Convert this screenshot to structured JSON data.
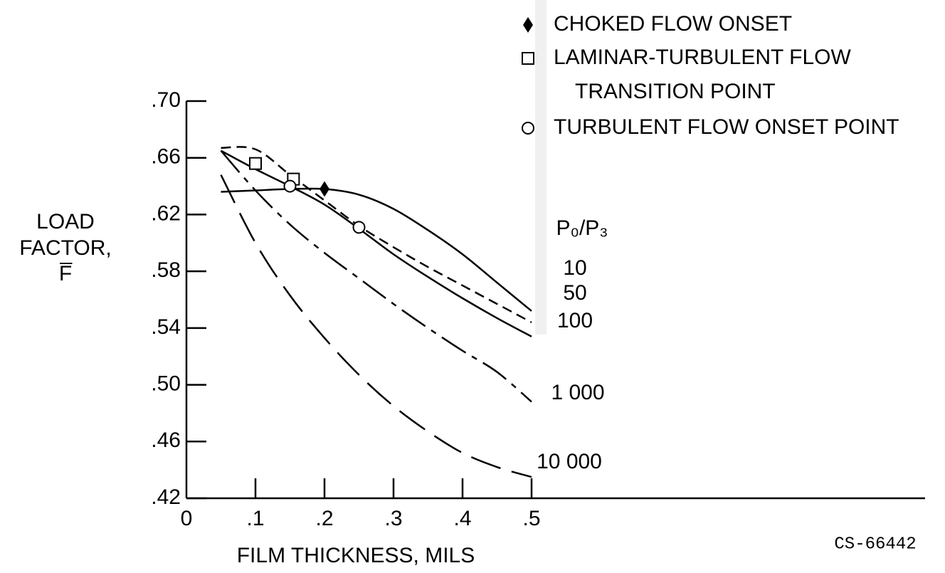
{
  "chart_data": {
    "type": "line",
    "xlabel": "FILM THICKNESS, MILS",
    "ylabel": [
      "LOAD",
      "FACTOR,",
      "F̅"
    ],
    "annotation": "CS-66442",
    "curve_label_title": "P₀/P₃",
    "xlim": [
      0,
      0.5
    ],
    "ylim": [
      0.42,
      0.7
    ],
    "xticks": [
      0,
      {
        "value": 0.1,
        "label": ".1"
      },
      {
        "value": 0.2,
        "label": ".2"
      },
      {
        "value": 0.3,
        "label": ".3"
      },
      {
        "value": 0.4,
        "label": ".4"
      },
      {
        "value": 0.5,
        "label": ".5"
      }
    ],
    "yticks": [
      {
        "value": 0.42,
        "label": ".42"
      },
      {
        "value": 0.46,
        "label": ".46"
      },
      {
        "value": 0.5,
        "label": ".50"
      },
      {
        "value": 0.54,
        "label": ".54"
      },
      {
        "value": 0.58,
        "label": ".58"
      },
      {
        "value": 0.62,
        "label": ".62"
      },
      {
        "value": 0.66,
        "label": ".66"
      },
      {
        "value": 0.7,
        "label": ".70"
      }
    ],
    "x": [
      0.05,
      0.1,
      0.15,
      0.2,
      0.25,
      0.3,
      0.35,
      0.4,
      0.45,
      0.5
    ],
    "series": [
      {
        "name": "10",
        "color": "#000000",
        "style": "solid",
        "values": [
          0.636,
          0.637,
          0.638,
          0.638,
          0.634,
          0.624,
          0.609,
          0.592,
          0.572,
          0.552
        ]
      },
      {
        "name": "50",
        "color": "#000000",
        "style": "dashed",
        "values": [
          0.667,
          0.666,
          0.648,
          0.63,
          0.612,
          0.597,
          0.583,
          0.57,
          0.557,
          0.544
        ]
      },
      {
        "name": "100",
        "color": "#000000",
        "style": "solid",
        "values": [
          0.665,
          0.652,
          0.64,
          0.627,
          0.61,
          0.592,
          0.576,
          0.561,
          0.547,
          0.534
        ]
      },
      {
        "name": "1 000",
        "color": "#000000",
        "style": "dashdot",
        "values": [
          0.665,
          0.637,
          0.613,
          0.593,
          0.575,
          0.557,
          0.54,
          0.524,
          0.509,
          0.488
        ]
      },
      {
        "name": "10 000",
        "color": "#000000",
        "style": "longdash",
        "values": [
          0.648,
          0.6,
          0.563,
          0.533,
          0.507,
          0.485,
          0.467,
          0.452,
          0.442,
          0.435
        ]
      }
    ],
    "markers": [
      {
        "name": "CHOKED FLOW ONSET",
        "marker": "diamond",
        "x": [
          0.2
        ],
        "values": [
          0.638
        ]
      },
      {
        "name": "LAMINAR-TURBULENT FLOW TRANSITION POINT",
        "marker": "square",
        "x": [
          0.1,
          0.155
        ],
        "values": [
          0.656,
          0.645
        ]
      },
      {
        "name": "TURBULENT FLOW ONSET POINT",
        "marker": "circle",
        "x": [
          0.15,
          0.25
        ],
        "values": [
          0.64,
          0.611
        ]
      }
    ]
  }
}
